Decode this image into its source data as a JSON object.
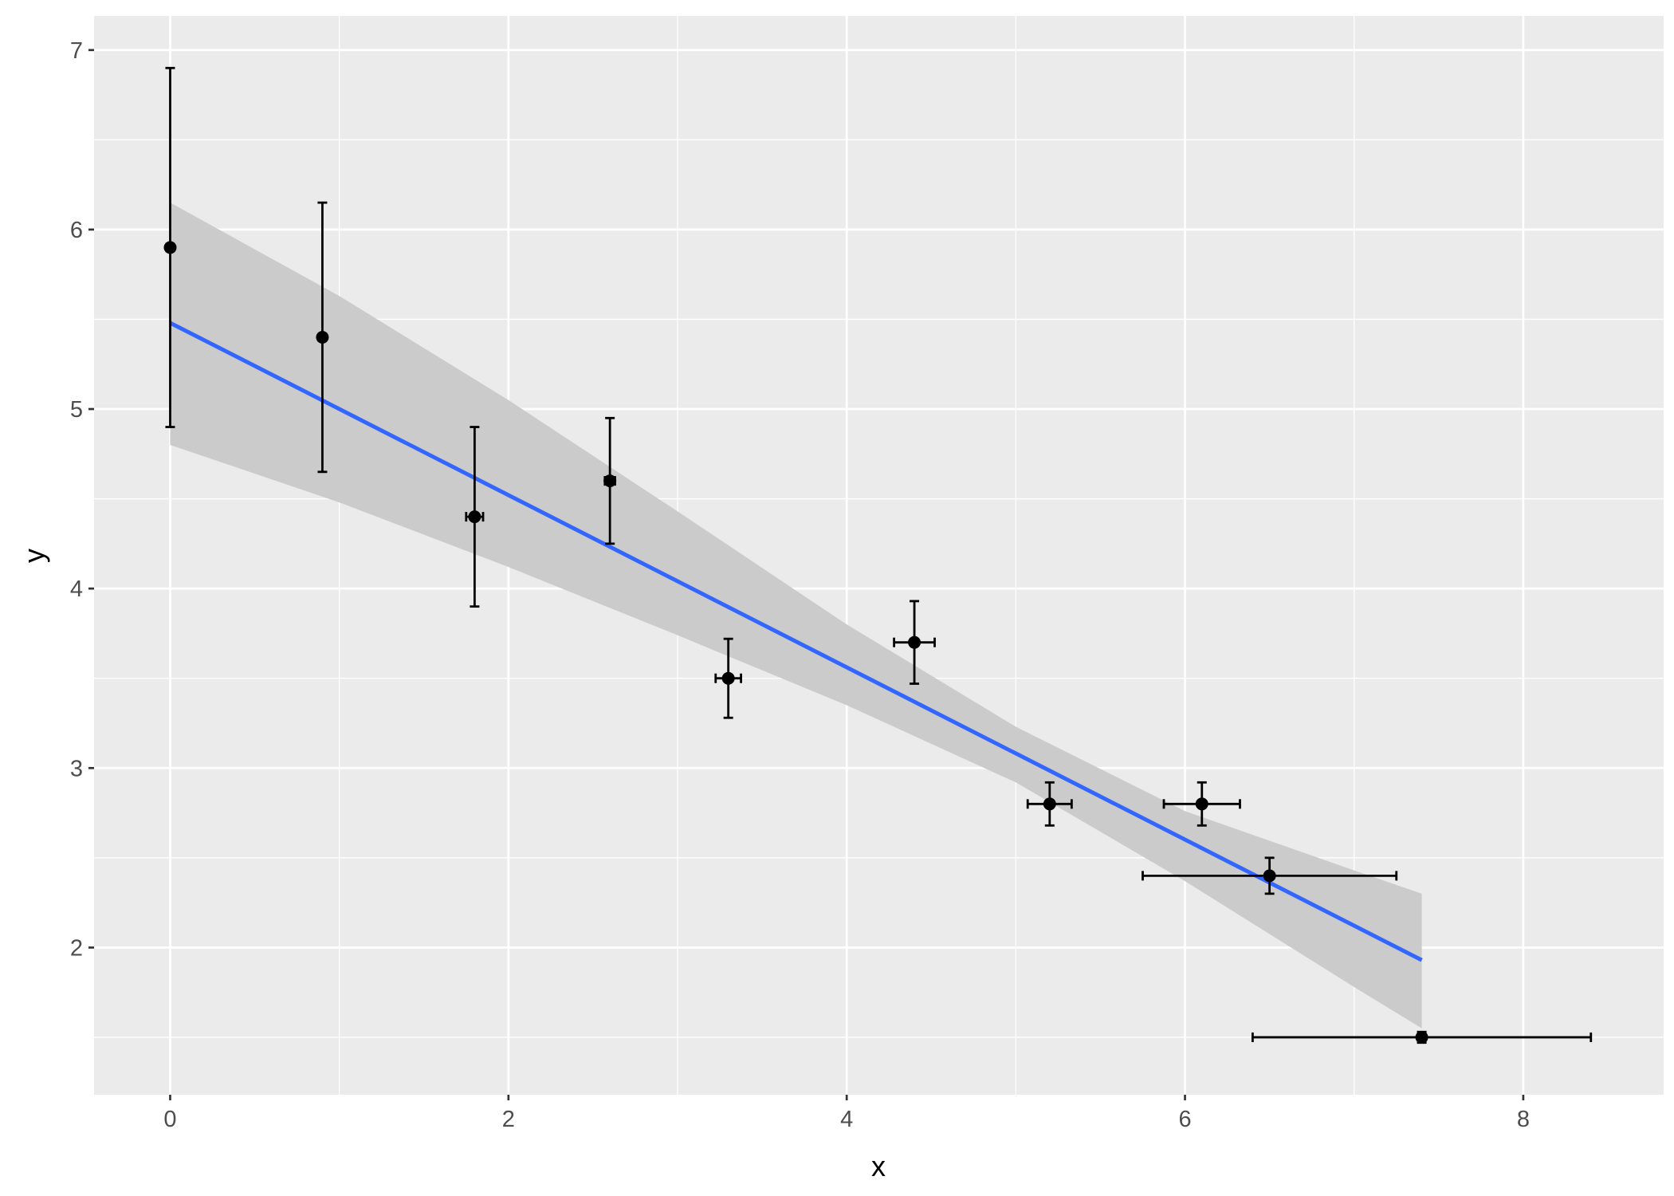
{
  "chart_data": {
    "type": "scatter",
    "title": "",
    "xlabel": "x",
    "ylabel": "y",
    "xlim": [
      -0.45,
      8.83
    ],
    "ylim": [
      1.18,
      7.19
    ],
    "grid": true,
    "xticks": [
      0,
      2,
      4,
      6,
      8
    ],
    "yticks": [
      2,
      3,
      4,
      5,
      6,
      7
    ],
    "xtick_labels": [
      "0",
      "2",
      "4",
      "6",
      "8"
    ],
    "ytick_labels": [
      "2",
      "3",
      "4",
      "5",
      "6",
      "7"
    ],
    "points": [
      {
        "x": 0.0,
        "y": 5.9,
        "xerr": 0.02,
        "yerr": 1.0
      },
      {
        "x": 0.9,
        "y": 5.4,
        "xerr": 0.02,
        "yerr": 0.75
      },
      {
        "x": 1.8,
        "y": 4.4,
        "xerr": 0.05,
        "yerr": 0.5
      },
      {
        "x": 2.6,
        "y": 4.6,
        "xerr": 0.03,
        "yerr": 0.35
      },
      {
        "x": 3.3,
        "y": 3.5,
        "xerr": 0.075,
        "yerr": 0.22
      },
      {
        "x": 4.4,
        "y": 3.7,
        "xerr": 0.12,
        "yerr": 0.23
      },
      {
        "x": 5.2,
        "y": 2.8,
        "xerr": 0.13,
        "yerr": 0.12
      },
      {
        "x": 6.1,
        "y": 2.8,
        "xerr": 0.225,
        "yerr": 0.12
      },
      {
        "x": 6.5,
        "y": 2.4,
        "xerr": 0.75,
        "yerr": 0.1
      },
      {
        "x": 7.4,
        "y": 1.5,
        "xerr": 1.0,
        "yerr": 0.03
      }
    ],
    "fit_line": {
      "x": [
        0,
        7.4
      ],
      "y": [
        5.48,
        1.93
      ],
      "color": "#3366FF"
    },
    "confidence_band": {
      "x": [
        0,
        1,
        2,
        3,
        4,
        5,
        6,
        7,
        7.4
      ],
      "ymin": [
        4.8,
        4.48,
        4.12,
        3.74,
        3.35,
        2.92,
        2.37,
        1.78,
        1.55
      ],
      "ymax": [
        6.15,
        5.63,
        5.05,
        4.43,
        3.8,
        3.23,
        2.76,
        2.43,
        2.3
      ]
    },
    "colors": {
      "panel": "#EBEBEB",
      "grid": "#FFFFFF",
      "band": "#CBCBCB",
      "points": "#000000"
    }
  }
}
